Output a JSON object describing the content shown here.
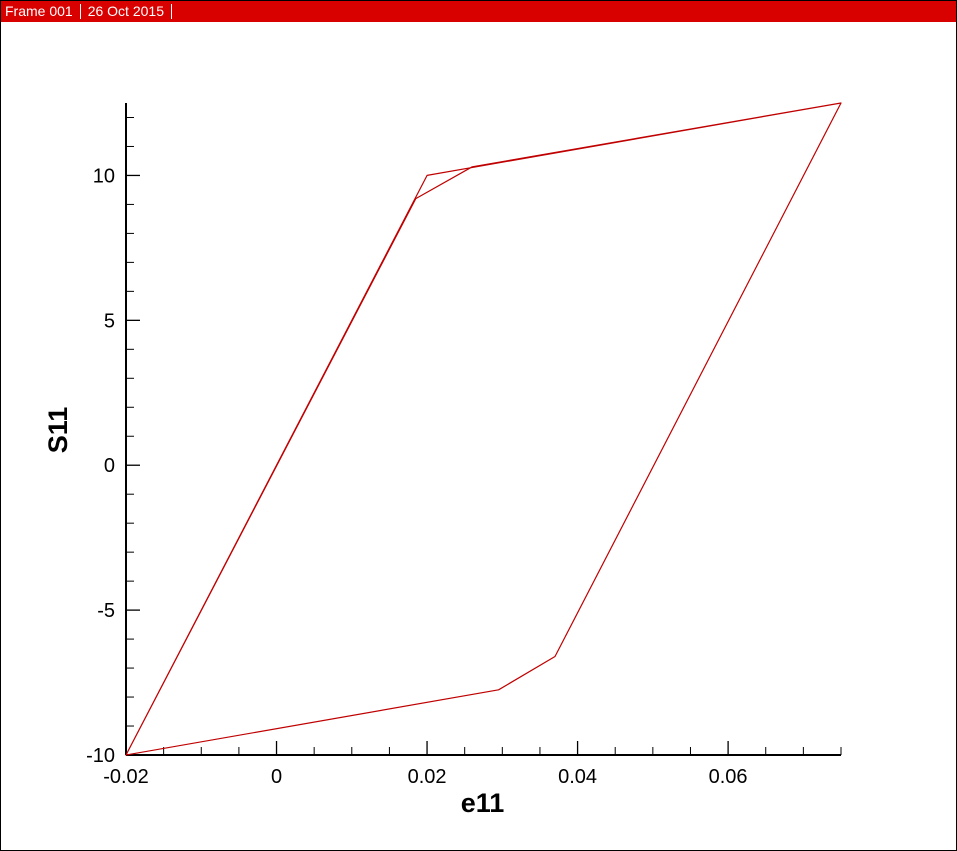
{
  "frame": {
    "label": "Frame 001",
    "date": "26 Oct 2015",
    "bar_color": "#d90000"
  },
  "chart_data": {
    "type": "line",
    "xlabel": "e11",
    "ylabel": "S11",
    "xlim": [
      -0.02,
      0.075
    ],
    "ylim": [
      -10,
      12.5
    ],
    "x_ticks": [
      -0.02,
      0,
      0.02,
      0.04,
      0.06
    ],
    "x_tick_labels": [
      "-0.02",
      "0",
      "0.02",
      "0.04",
      "0.06"
    ],
    "y_ticks": [
      -10,
      -5,
      0,
      5,
      10
    ],
    "y_tick_labels": [
      "-10",
      "-5",
      "0",
      "5",
      "10"
    ],
    "grid": false,
    "legend": "none",
    "line_color": "#c00000",
    "series": [
      {
        "x": [
          -0.02,
          0.02,
          0.075,
          0.037,
          0.0295,
          -0.02,
          0.0185,
          0.026,
          0.075
        ],
        "y": [
          -10,
          10,
          12.5,
          -6.6,
          -7.75,
          -10,
          9.2,
          10.3,
          12.5
        ]
      }
    ]
  }
}
